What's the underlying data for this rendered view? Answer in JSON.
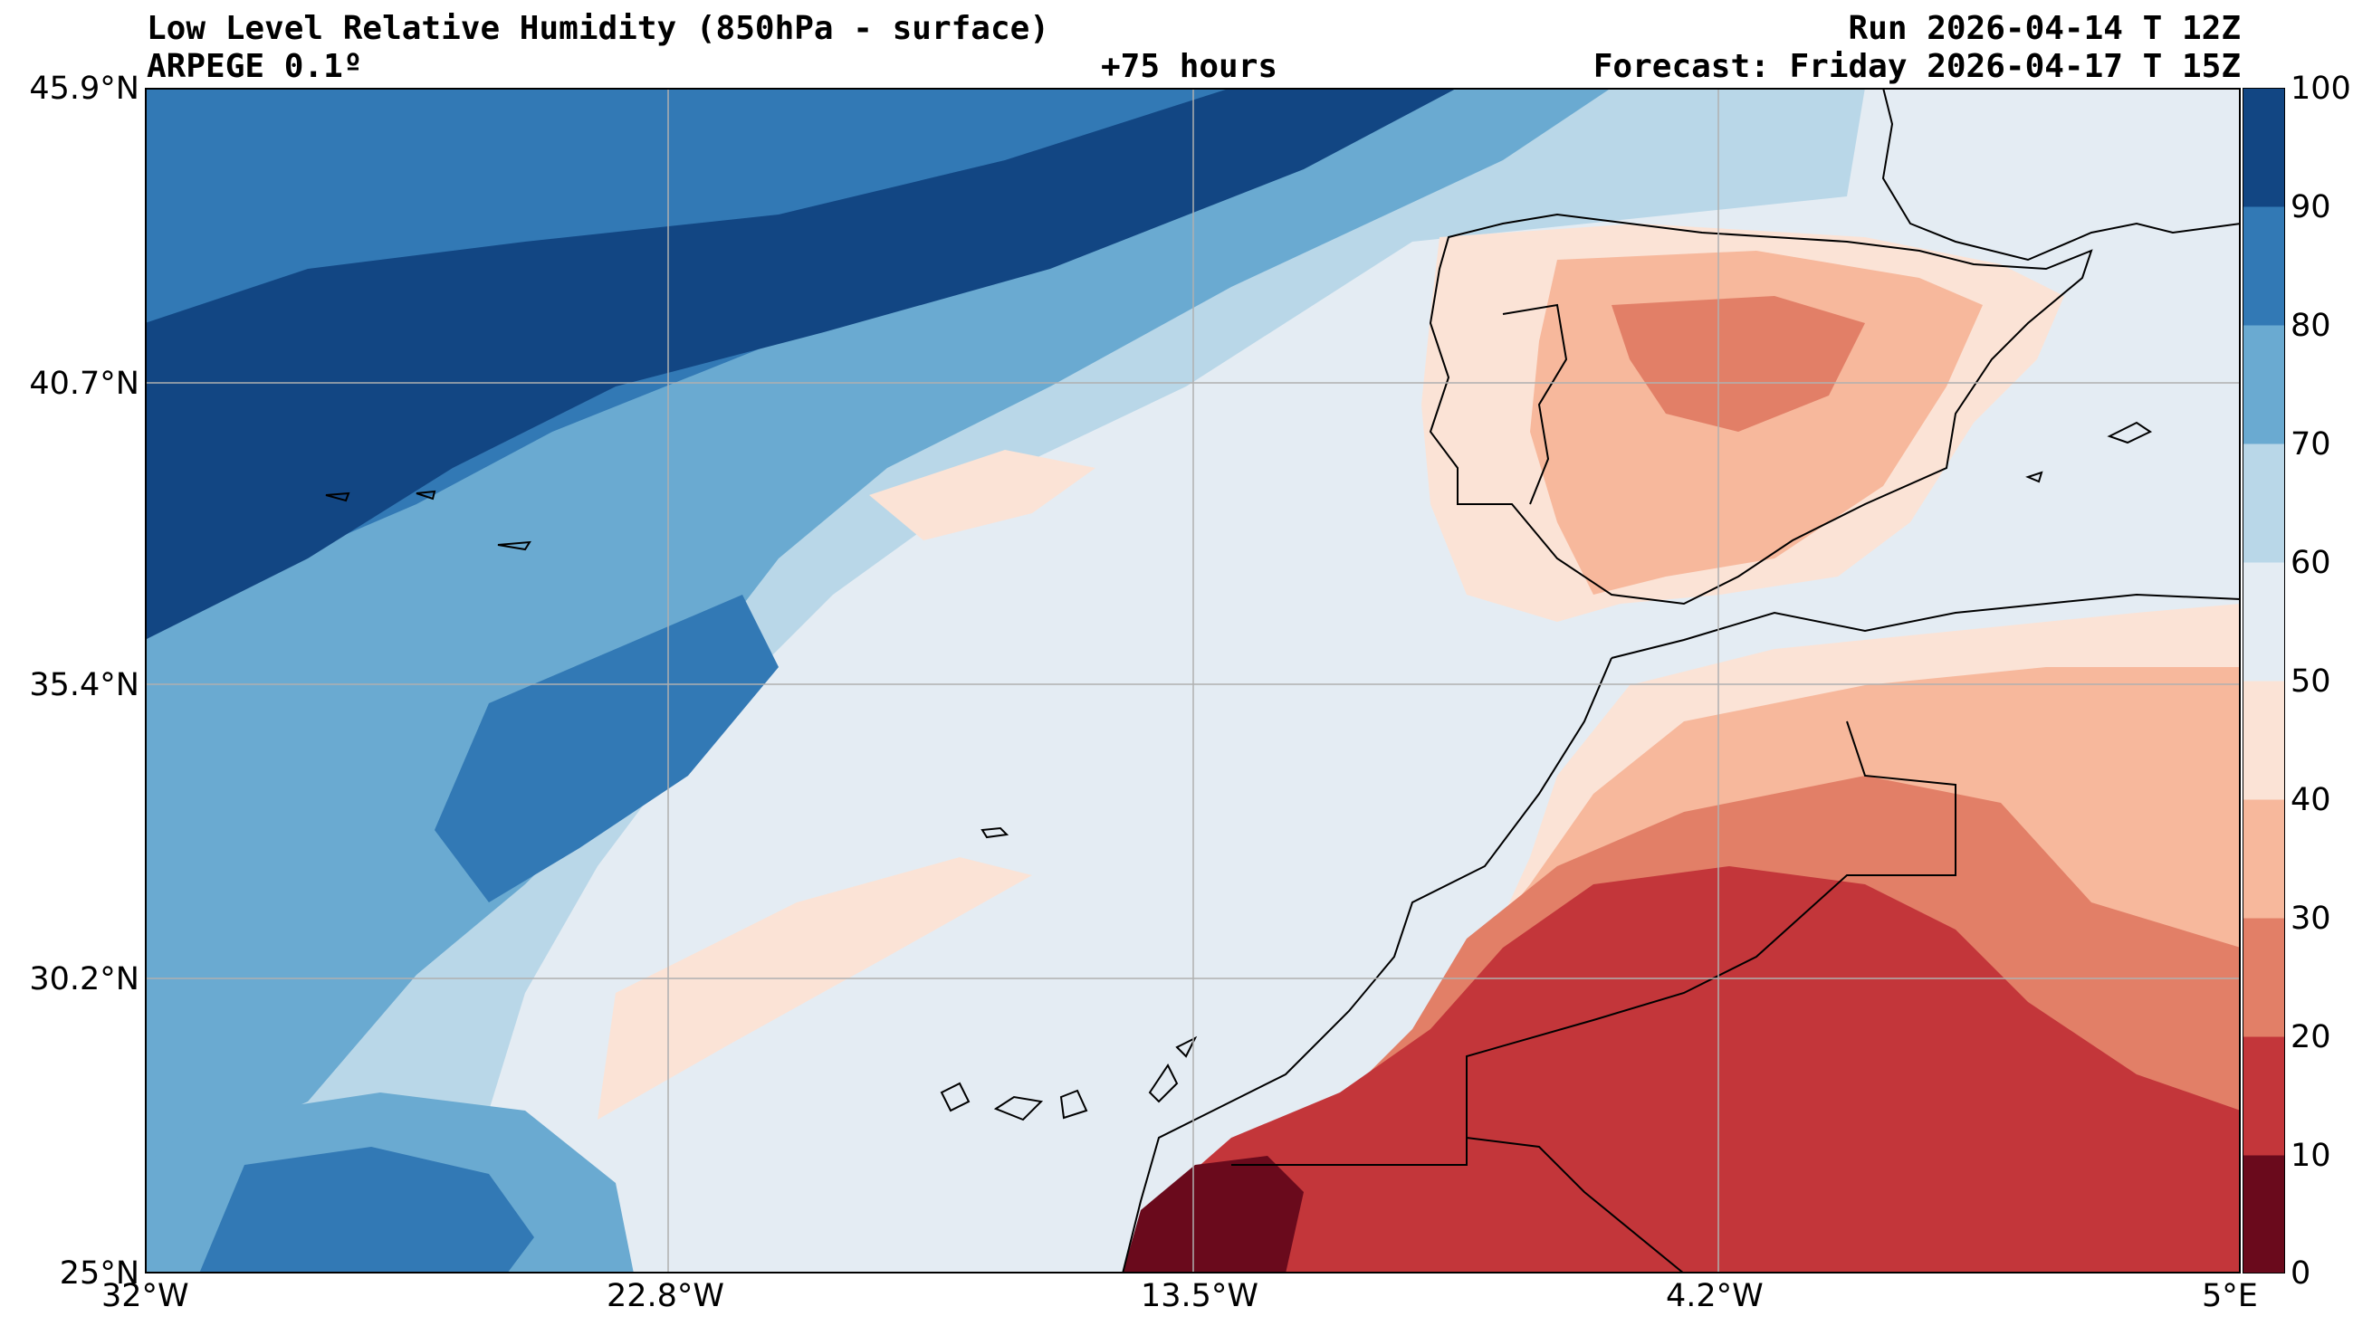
{
  "header": {
    "title": "Low Level Relative Humidity (850hPa - surface)",
    "model": "ARPEGE 0.1º",
    "lead": "+75 hours",
    "run": "Run 2026-04-14 T 12Z",
    "forecast": "Forecast: Friday 2026-04-17 T 15Z"
  },
  "axes": {
    "lat_labels": [
      "45.9°N",
      "40.7°N",
      "35.4°N",
      "30.2°N",
      "25°N"
    ],
    "lon_labels": [
      "32°W",
      "22.8°W",
      "13.5°W",
      "4.2°W",
      "5°E"
    ],
    "lat_range": [
      25.0,
      45.9
    ],
    "lon_range": [
      -32.0,
      5.0
    ]
  },
  "colorbar": {
    "labels": [
      "100",
      "90",
      "80",
      "70",
      "60",
      "50",
      "40",
      "30",
      "20",
      "10",
      "0"
    ],
    "colors": [
      "#6a0a1c",
      "#c3363a",
      "#e27f67",
      "#f7b89c",
      "#fbe3d6",
      "#e4ecf3",
      "#b9d7e8",
      "#6aaad1",
      "#3279b5",
      "#124683"
    ]
  },
  "legend_levels": [
    0,
    10,
    20,
    30,
    40,
    50,
    60,
    70,
    80,
    90,
    100
  ]
}
